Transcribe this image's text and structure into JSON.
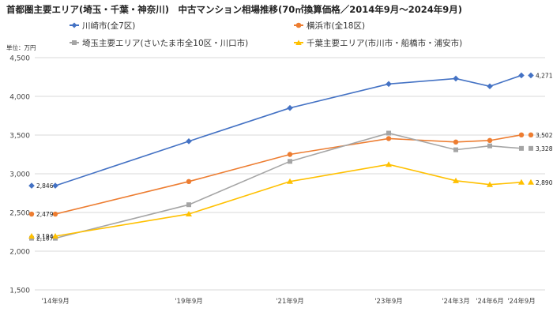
{
  "chart_data": {
    "type": "line",
    "title": "首都圏主要エリア(埼玉・千葉・神奈川)　中古マンション相場推移(70㎡換算価格／2014年9月～2024年9月)",
    "unit_label": "単位：万円",
    "categories": [
      "'14年9月",
      "'19年9月",
      "'21年9月",
      "'23年9月",
      "'24年3月",
      "'24年6月",
      "'24年9月"
    ],
    "ylim": [
      1500,
      4500
    ],
    "yticks": [
      "1,500",
      "2,000",
      "2,500",
      "3,000",
      "3,500",
      "4,000",
      "4,500"
    ],
    "grid": true,
    "legend_position": "top",
    "series": [
      {
        "name": "川崎市(全7区)",
        "color": "#4472C4",
        "marker": "diamond",
        "values": [
          2846,
          3420,
          3850,
          4160,
          4230,
          4130,
          4271
        ],
        "start_label": "2,846",
        "end_label": "4,271"
      },
      {
        "name": "横浜市(全18区)",
        "color": "#ED7D31",
        "marker": "circle",
        "values": [
          2479,
          2900,
          3250,
          3455,
          3410,
          3430,
          3502
        ],
        "start_label": "2,479",
        "end_label": "3,502"
      },
      {
        "name": "埼玉主要エリア(さいたま市全10区・川口市)",
        "color": "#A5A5A5",
        "marker": "square",
        "values": [
          2167,
          2600,
          3160,
          3525,
          3310,
          3360,
          3328
        ],
        "start_label": "2,167",
        "end_label": "3,328"
      },
      {
        "name": "千葉主要エリア(市川市・船橋市・浦安市)",
        "color": "#FFC000",
        "marker": "triangle",
        "values": [
          2194,
          2480,
          2900,
          3120,
          2910,
          2860,
          2890
        ],
        "start_label": "2,194",
        "end_label": "2,890"
      }
    ]
  }
}
